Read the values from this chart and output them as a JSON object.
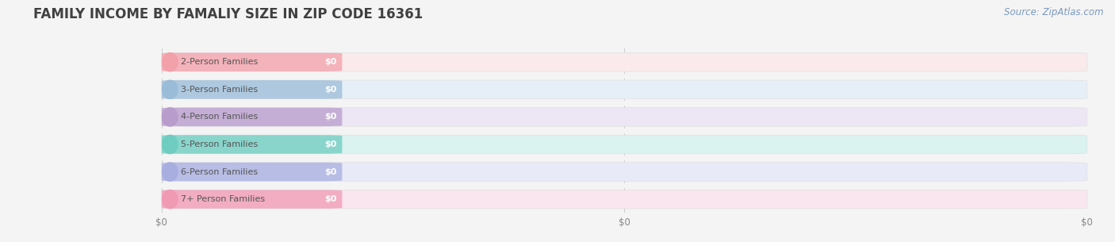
{
  "title": "FAMILY INCOME BY FAMALIY SIZE IN ZIP CODE 16361",
  "source_text": "Source: ZipAtlas.com",
  "categories": [
    "2-Person Families",
    "3-Person Families",
    "4-Person Families",
    "5-Person Families",
    "6-Person Families",
    "7+ Person Families"
  ],
  "values": [
    0,
    0,
    0,
    0,
    0,
    0
  ],
  "bar_colors": [
    "#f2a0aa",
    "#9bbcd8",
    "#b89ccc",
    "#6eccc0",
    "#a8aee0",
    "#f09ab4"
  ],
  "bar_light_colors": [
    "#faeaec",
    "#e6eff7",
    "#ede6f5",
    "#daf2f0",
    "#e8eaf7",
    "#fae6ee"
  ],
  "background_color": "#f4f4f4",
  "title_fontsize": 12,
  "label_fontsize": 8,
  "value_fontsize": 8,
  "source_fontsize": 8.5,
  "xtick_positions": [
    0.0,
    0.5,
    1.0
  ],
  "xtick_labels": [
    "$0",
    "$0",
    "$0"
  ]
}
